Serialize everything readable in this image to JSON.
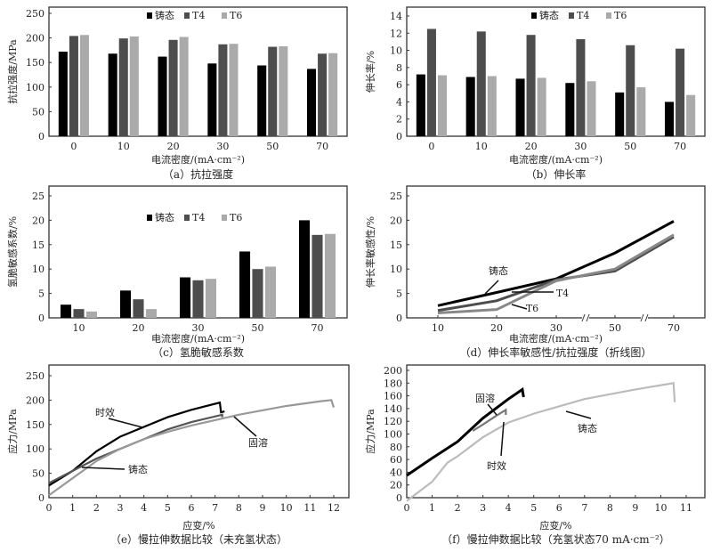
{
  "colors": {
    "cast": "#000000",
    "t4": "#4d4d4d",
    "t6": "#aaaaaa"
  },
  "chart_data": [
    {
      "id": "a",
      "type": "bar",
      "caption": "（a）抗拉强度",
      "xlabel": "电流密度/(mA·cm⁻²)",
      "ylabel": "抗拉强度/MPa",
      "categories": [
        "0",
        "10",
        "20",
        "30",
        "50",
        "70"
      ],
      "ylim": [
        0,
        250
      ],
      "yticks": [
        0,
        50,
        100,
        150,
        200,
        250
      ],
      "legend_position": "top-center",
      "series": [
        {
          "name": "铸态",
          "color": "#000000",
          "values": [
            172,
            168,
            162,
            148,
            144,
            137
          ]
        },
        {
          "name": "T4",
          "color": "#4d4d4d",
          "values": [
            204,
            199,
            196,
            187,
            182,
            168
          ]
        },
        {
          "name": "T6",
          "color": "#aaaaaa",
          "values": [
            206,
            203,
            202,
            188,
            183,
            169
          ]
        }
      ]
    },
    {
      "id": "b",
      "type": "bar",
      "caption": "（b）伸长率",
      "xlabel": "电流密度/(mA·cm⁻²)",
      "ylabel": "伸长率/%",
      "categories": [
        "0",
        "10",
        "20",
        "30",
        "50",
        "70"
      ],
      "ylim": [
        0,
        14
      ],
      "yticks": [
        0,
        2,
        4,
        6,
        8,
        10,
        12,
        14
      ],
      "legend_position": "top-right",
      "series": [
        {
          "name": "铸态",
          "color": "#000000",
          "values": [
            7.2,
            6.9,
            6.7,
            6.2,
            5.1,
            4.0
          ]
        },
        {
          "name": "T4",
          "color": "#4d4d4d",
          "values": [
            12.5,
            12.2,
            11.8,
            11.3,
            10.6,
            10.2
          ]
        },
        {
          "name": "T6",
          "color": "#aaaaaa",
          "values": [
            7.1,
            7.0,
            6.8,
            6.4,
            5.7,
            4.8
          ]
        }
      ]
    },
    {
      "id": "c",
      "type": "bar",
      "caption": "（c）氢脆敏感系数",
      "xlabel": "电流密度/(mA·cm⁻²)",
      "ylabel": "氢脆敏感系数/%",
      "categories": [
        "10",
        "20",
        "30",
        "50",
        "70"
      ],
      "ylim": [
        0,
        25
      ],
      "yticks": [
        0,
        5,
        10,
        15,
        20,
        25
      ],
      "legend_position": "upper-center",
      "series": [
        {
          "name": "铸态",
          "color": "#000000",
          "values": [
            2.7,
            5.6,
            8.3,
            13.6,
            20.0
          ]
        },
        {
          "name": "T4",
          "color": "#4d4d4d",
          "values": [
            1.8,
            3.8,
            7.7,
            10.0,
            17.0
          ]
        },
        {
          "name": "T6",
          "color": "#aaaaaa",
          "values": [
            1.3,
            1.8,
            8.0,
            10.5,
            17.2
          ]
        }
      ]
    },
    {
      "id": "d",
      "type": "line",
      "caption": "（d）伸长率敏感性/抗拉强度（折线图）",
      "xlabel": "电流密度/(mA·cm⁻²)",
      "ylabel": "伸长率敏感性/%",
      "categories": [
        "10",
        "20",
        "30",
        "50",
        "70"
      ],
      "axis_breaks": true,
      "ylim": [
        0,
        25
      ],
      "yticks": [
        0,
        5,
        10,
        15,
        20,
        25
      ],
      "series": [
        {
          "name": "铸态",
          "color": "#000000",
          "values": [
            2.5,
            5.2,
            8.0,
            13.3,
            19.8
          ]
        },
        {
          "name": "T4",
          "color": "#4d4d4d",
          "values": [
            1.5,
            3.5,
            7.8,
            9.6,
            16.6
          ]
        },
        {
          "name": "T6",
          "color": "#888888",
          "values": [
            1.0,
            1.7,
            7.6,
            10.0,
            17.0
          ]
        }
      ]
    },
    {
      "id": "e",
      "type": "line",
      "caption": "（e）慢拉伸数据比较（未充氢状态）",
      "xlabel": "应变/%",
      "ylabel": "应力/MPa",
      "xlim": [
        0,
        12
      ],
      "xticks": [
        0,
        1,
        2,
        3,
        4,
        5,
        6,
        7,
        8,
        9,
        10,
        11,
        12
      ],
      "ylim": [
        0,
        250
      ],
      "yticks": [
        0,
        50,
        100,
        150,
        200,
        250
      ],
      "series": [
        {
          "name": "时效",
          "color": "#000000",
          "points": [
            [
              0,
              25
            ],
            [
              1,
              55
            ],
            [
              2,
              95
            ],
            [
              3,
              125
            ],
            [
              4,
              145
            ],
            [
              5,
              165
            ],
            [
              6,
              180
            ],
            [
              7.2,
              195
            ],
            [
              7.25,
              175
            ],
            [
              7.4,
              177
            ]
          ]
        },
        {
          "name": "铸态",
          "color": "#555555",
          "points": [
            [
              0,
              30
            ],
            [
              1,
              55
            ],
            [
              2,
              80
            ],
            [
              3,
              100
            ],
            [
              4,
              120
            ],
            [
              5,
              140
            ],
            [
              6,
              155
            ],
            [
              7.3,
              170
            ],
            [
              7.3,
              165
            ]
          ]
        },
        {
          "name": "固溶",
          "color": "#999999",
          "points": [
            [
              0,
              5
            ],
            [
              1,
              40
            ],
            [
              2,
              75
            ],
            [
              3,
              100
            ],
            [
              4,
              120
            ],
            [
              5,
              135
            ],
            [
              6,
              148
            ],
            [
              8,
              170
            ],
            [
              10,
              188
            ],
            [
              11.5,
              198
            ],
            [
              11.9,
              200
            ],
            [
              12,
              185
            ]
          ]
        }
      ]
    },
    {
      "id": "f",
      "type": "line",
      "caption": "（f）慢拉伸数据比较（充氢状态70 mA·cm⁻²）",
      "xlabel": "应变/%",
      "ylabel": "应力/MPa",
      "xlim": [
        0,
        11
      ],
      "xticks": [
        0,
        1,
        2,
        3,
        4,
        5,
        6,
        7,
        8,
        9,
        10,
        11
      ],
      "ylim": [
        0,
        200
      ],
      "yticks": [
        0,
        20,
        40,
        60,
        80,
        100,
        120,
        140,
        160,
        180,
        200
      ],
      "series": [
        {
          "name": "固溶",
          "color": "#000000",
          "points": [
            [
              0,
              35
            ],
            [
              1,
              62
            ],
            [
              2,
              88
            ],
            [
              3,
              125
            ],
            [
              4,
              155
            ],
            [
              4.55,
              170
            ],
            [
              4.6,
              158
            ]
          ]
        },
        {
          "name": "时效",
          "color": "#777777",
          "points": [
            [
              2.6,
              105
            ],
            [
              3,
              115
            ],
            [
              3.5,
              128
            ],
            [
              3.9,
              138
            ],
            [
              3.9,
              130
            ]
          ]
        },
        {
          "name": "铸态",
          "color": "#bbbbbb",
          "points": [
            [
              0,
              -5
            ],
            [
              1,
              25
            ],
            [
              1.6,
              55
            ],
            [
              2,
              65
            ],
            [
              3,
              95
            ],
            [
              4,
              118
            ],
            [
              5,
              132
            ],
            [
              7,
              155
            ],
            [
              9,
              170
            ],
            [
              10.5,
              180
            ],
            [
              10.55,
              150
            ]
          ]
        }
      ]
    }
  ]
}
